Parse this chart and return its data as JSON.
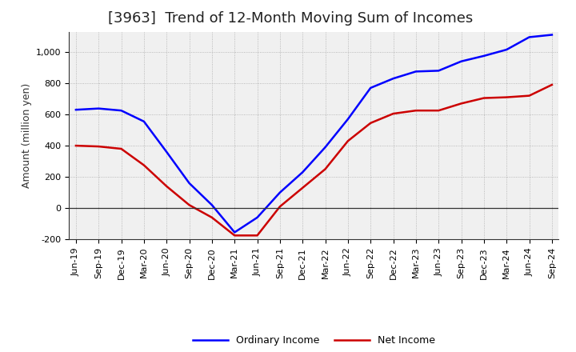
{
  "title": "[3963]  Trend of 12-Month Moving Sum of Incomes",
  "ylabel": "Amount (million yen)",
  "x_labels": [
    "Jun-19",
    "Sep-19",
    "Dec-19",
    "Mar-20",
    "Jun-20",
    "Sep-20",
    "Dec-20",
    "Mar-21",
    "Jun-21",
    "Sep-21",
    "Dec-21",
    "Mar-22",
    "Jun-22",
    "Sep-22",
    "Dec-22",
    "Mar-23",
    "Jun-23",
    "Sep-23",
    "Dec-23",
    "Mar-24",
    "Jun-24",
    "Sep-24"
  ],
  "ordinary_income": [
    630,
    638,
    625,
    555,
    360,
    160,
    20,
    -155,
    -60,
    100,
    230,
    390,
    570,
    770,
    830,
    875,
    880,
    940,
    975,
    1015,
    1095,
    1110
  ],
  "net_income": [
    400,
    395,
    380,
    275,
    140,
    20,
    -60,
    -175,
    -175,
    10,
    130,
    250,
    430,
    545,
    605,
    625,
    625,
    670,
    705,
    710,
    720,
    790
  ],
  "ordinary_color": "#0000ff",
  "net_color": "#cc0000",
  "ylim": [
    -200,
    1130
  ],
  "yticks": [
    -200,
    0,
    200,
    400,
    600,
    800,
    1000
  ],
  "background_color": "#ffffff",
  "plot_bg_color": "#f0f0f0",
  "grid_color": "#999999",
  "line_width": 1.8,
  "title_fontsize": 13,
  "axis_fontsize": 9,
  "tick_fontsize": 8,
  "legend_labels": [
    "Ordinary Income",
    "Net Income"
  ],
  "legend_fontsize": 9
}
